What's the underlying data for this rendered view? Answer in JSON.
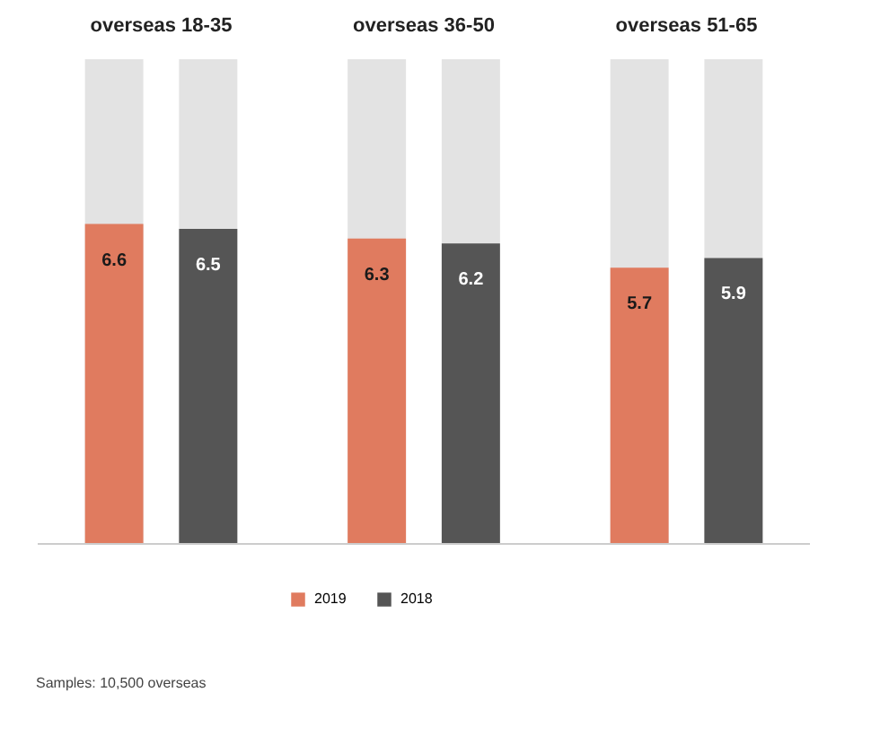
{
  "chart_data": {
    "type": "bar",
    "categories": [
      "overseas 18-35",
      "overseas 36-50",
      "overseas 51-65"
    ],
    "series": [
      {
        "name": "2019",
        "color": "#e07b5f",
        "values": [
          6.6,
          6.3,
          5.7
        ]
      },
      {
        "name": "2018",
        "color": "#555555",
        "values": [
          6.5,
          6.2,
          5.9
        ]
      }
    ],
    "ylim": [
      0,
      10
    ],
    "tick_labels": "x",
    "grid": false,
    "data_labels": true,
    "legend": "bottom left",
    "annotations": [
      "Samples: 10,500 overseas"
    ]
  }
}
